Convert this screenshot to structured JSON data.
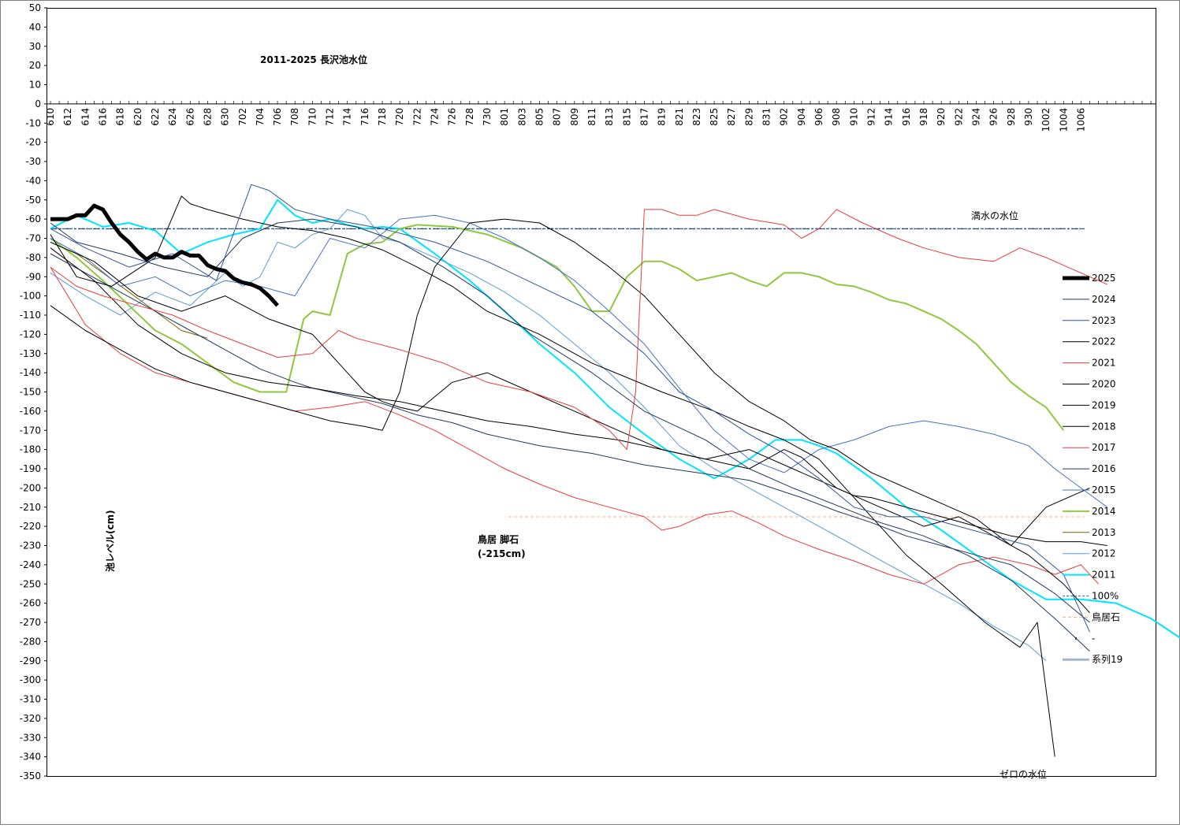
{
  "chart_data": {
    "type": "line",
    "title": "2011-2025 長沢池水位",
    "ylabel": "池レベル(cm)",
    "ylim": [
      -350,
      50
    ],
    "y_ticks": [
      50,
      40,
      30,
      20,
      10,
      0,
      -10,
      -20,
      -30,
      -40,
      -50,
      -60,
      -70,
      -80,
      -90,
      -100,
      -110,
      -120,
      -130,
      -140,
      -150,
      -160,
      -170,
      -180,
      -190,
      -200,
      -210,
      -220,
      -230,
      -240,
      -250,
      -260,
      -270,
      -280,
      -290,
      -300,
      -310,
      -320,
      -330,
      -340,
      -350
    ],
    "x_tick_labels": [
      "610",
      "612",
      "614",
      "616",
      "618",
      "620",
      "622",
      "624",
      "626",
      "628",
      "630",
      "702",
      "704",
      "706",
      "708",
      "710",
      "712",
      "714",
      "716",
      "718",
      "720",
      "722",
      "724",
      "726",
      "728",
      "730",
      "801",
      "803",
      "805",
      "807",
      "809",
      "811",
      "813",
      "815",
      "817",
      "819",
      "821",
      "823",
      "825",
      "827",
      "829",
      "831",
      "902",
      "904",
      "906",
      "908",
      "910",
      "912",
      "914",
      "916",
      "918",
      "920",
      "922",
      "924",
      "926",
      "928",
      "930",
      "1002",
      "1004",
      "1006"
    ],
    "annotations": {
      "full_level": "満水の水位",
      "torii": "鳥居 脚石",
      "torii_sub": "(-215cm)",
      "zero_level": "ゼロの水位"
    },
    "reference_lines": [
      {
        "name": "100%",
        "y": -65,
        "color": "#2e75b6"
      },
      {
        "name": "鳥居石",
        "y": -215,
        "color": "#f4b183"
      }
    ],
    "legend_placement": "right",
    "series": [
      {
        "name": "2025",
        "color": "#000000",
        "width": 5,
        "x": [
          0,
          1,
          2,
          3,
          4,
          5,
          6,
          7,
          8,
          9,
          10,
          11,
          12,
          13,
          14,
          15,
          16,
          17,
          18,
          19,
          20,
          21,
          22,
          23,
          24,
          25,
          26
        ],
        "y": [
          -60,
          -60,
          -60,
          -58,
          -58,
          -53,
          -55,
          -62,
          -68,
          -72,
          -77,
          -81,
          -78,
          -80,
          -80,
          -77,
          -79,
          -79,
          -84,
          -86,
          -87,
          -91,
          -93,
          -94,
          -96,
          -100,
          -105
        ]
      },
      {
        "name": "2024",
        "color": "#1f3864",
        "width": 1,
        "x": [
          0,
          3,
          8,
          13,
          18,
          22,
          26,
          30,
          35,
          40,
          45,
          50,
          55,
          62,
          68,
          75,
          80,
          85,
          95,
          100,
          105,
          110,
          115,
          119
        ],
        "y": [
          -62,
          -72,
          -78,
          -85,
          -90,
          -70,
          -62,
          -60,
          -64,
          -72,
          -85,
          -100,
          -120,
          -140,
          -160,
          -175,
          -190,
          -200,
          -218,
          -225,
          -235,
          -248,
          -268,
          -285
        ]
      },
      {
        "name": "2023",
        "color": "#2f5597",
        "width": 1,
        "x": [
          0,
          4,
          9,
          14,
          19,
          23,
          25,
          28,
          32,
          38,
          44,
          50,
          56,
          62,
          68,
          72,
          76,
          80,
          84,
          88,
          92,
          96,
          100,
          104,
          108,
          112,
          116,
          119
        ],
        "y": [
          -65,
          -75,
          -85,
          -78,
          -92,
          -42,
          -45,
          -55,
          -60,
          -65,
          -72,
          -82,
          -95,
          -108,
          -130,
          -150,
          -160,
          -172,
          -182,
          -195,
          -210,
          -215,
          -215,
          -220,
          -225,
          -230,
          -245,
          -275
        ]
      },
      {
        "name": "2022",
        "color": "#000000",
        "width": 1,
        "x": [
          0,
          3,
          7,
          12,
          15,
          16,
          18,
          22,
          26,
          30,
          34,
          38,
          42,
          46,
          50,
          56,
          62,
          70,
          76,
          80,
          84,
          88,
          90,
          92,
          94,
          96,
          98,
          102,
          107,
          111,
          113,
          115
        ],
        "y": [
          -68,
          -90,
          -95,
          -80,
          -48,
          -52,
          -55,
          -60,
          -64,
          -66,
          -70,
          -76,
          -85,
          -95,
          -108,
          -120,
          -135,
          -150,
          -160,
          -168,
          -175,
          -185,
          -195,
          -205,
          -215,
          -225,
          -235,
          -250,
          -270,
          -283,
          -270,
          -340
        ]
      },
      {
        "name": "2021",
        "color": "#e83c3c",
        "width": 1,
        "x": [
          0,
          3,
          6,
          10,
          14,
          18,
          22,
          26,
          30,
          33,
          35,
          40,
          45,
          50,
          55,
          60,
          64,
          66,
          67,
          68,
          70,
          72,
          74,
          76,
          80,
          84,
          86,
          88,
          90,
          93,
          97,
          100,
          104,
          108,
          111,
          114,
          118,
          121
        ],
        "y": [
          -85,
          -95,
          -100,
          -105,
          -110,
          -118,
          -125,
          -132,
          -130,
          -118,
          -122,
          -128,
          -135,
          -145,
          -150,
          -158,
          -170,
          -180,
          -150,
          -55,
          -55,
          -58,
          -58,
          -55,
          -60,
          -63,
          -70,
          -65,
          -55,
          -62,
          -70,
          -75,
          -80,
          -82,
          -75,
          -80,
          -88,
          -94
        ]
      },
      {
        "name": "2020",
        "color": "#000000",
        "width": 1,
        "x": [
          0,
          4,
          8,
          12,
          16,
          20,
          24,
          28,
          32,
          36,
          38,
          40,
          42,
          44,
          48,
          52,
          56,
          60,
          64,
          68,
          72,
          76,
          80,
          84,
          87,
          90,
          94,
          98,
          102,
          106,
          110,
          114,
          119
        ],
        "y": [
          -105,
          -118,
          -128,
          -138,
          -145,
          -150,
          -155,
          -160,
          -165,
          -168,
          -170,
          -150,
          -110,
          -85,
          -62,
          -60,
          -62,
          -72,
          -85,
          -100,
          -120,
          -140,
          -155,
          -165,
          -175,
          -180,
          -192,
          -200,
          -208,
          -216,
          -230,
          -210,
          -200
        ]
      },
      {
        "name": "2019",
        "color": "#000000",
        "width": 1,
        "x": [
          0,
          5,
          10,
          15,
          20,
          25,
          30,
          34,
          36,
          38,
          40,
          42,
          46,
          50,
          55,
          60,
          65,
          70,
          75,
          80,
          85,
          90,
          95,
          100,
          104,
          108,
          112,
          116,
          119
        ],
        "y": [
          -72,
          -82,
          -100,
          -108,
          -100,
          -112,
          -120,
          -140,
          -150,
          -155,
          -158,
          -160,
          -145,
          -140,
          -150,
          -160,
          -170,
          -180,
          -185,
          -180,
          -190,
          -200,
          -210,
          -220,
          -215,
          -225,
          -235,
          -250,
          -265
        ]
      },
      {
        "name": "2018",
        "color": "#000000",
        "width": 1,
        "x": [
          0,
          5,
          10,
          15,
          20,
          25,
          30,
          35,
          40,
          45,
          50,
          55,
          60,
          65,
          70,
          75,
          80,
          82,
          84,
          86,
          88,
          90,
          92,
          94,
          98,
          102,
          106,
          110,
          114,
          118,
          121
        ],
        "y": [
          -75,
          -92,
          -115,
          -130,
          -140,
          -145,
          -148,
          -152,
          -155,
          -160,
          -165,
          -168,
          -172,
          -175,
          -180,
          -185,
          -190,
          -185,
          -180,
          -184,
          -192,
          -200,
          -204,
          -205,
          -210,
          -215,
          -220,
          -225,
          -228,
          -228,
          -230
        ]
      },
      {
        "name": "2017",
        "color": "#e83c3c",
        "width": 1,
        "x": [
          0,
          4,
          8,
          12,
          16,
          20,
          24,
          28,
          32,
          36,
          40,
          44,
          48,
          52,
          56,
          60,
          64,
          68,
          70,
          72,
          75,
          78,
          81,
          84,
          88,
          92,
          96,
          100,
          104,
          108,
          112,
          115,
          118,
          120
        ],
        "y": [
          -85,
          -115,
          -130,
          -140,
          -145,
          -150,
          -155,
          -160,
          -158,
          -155,
          -162,
          -170,
          -180,
          -190,
          -198,
          -205,
          -210,
          -215,
          -222,
          -220,
          -214,
          -212,
          -218,
          -225,
          -232,
          -238,
          -245,
          -250,
          -240,
          -236,
          -240,
          -245,
          -240,
          -250
        ]
      },
      {
        "name": "2016",
        "color": "#1f3864",
        "width": 1,
        "x": [
          0,
          4,
          8,
          12,
          16,
          20,
          24,
          28,
          30,
          32,
          34,
          38,
          42,
          46,
          50,
          56,
          62,
          68,
          74,
          80,
          86,
          90,
          94,
          98,
          102,
          106,
          110,
          115,
          119
        ],
        "y": [
          -78,
          -88,
          -98,
          -108,
          -118,
          -128,
          -138,
          -145,
          -148,
          -150,
          -152,
          -156,
          -162,
          -166,
          -172,
          -178,
          -182,
          -188,
          -192,
          -196,
          -205,
          -212,
          -218,
          -225,
          -230,
          -235,
          -240,
          -255,
          -270
        ]
      },
      {
        "name": "2015",
        "color": "#4472c4",
        "width": 1,
        "x": [
          0,
          4,
          8,
          12,
          16,
          20,
          24,
          28,
          32,
          36,
          40,
          44,
          48,
          52,
          56,
          60,
          64,
          68,
          72,
          76,
          80,
          84,
          88,
          92,
          96,
          100,
          104,
          108,
          112,
          115,
          118,
          121
        ],
        "y": [
          -70,
          -80,
          -95,
          -90,
          -100,
          -92,
          -95,
          -100,
          -70,
          -75,
          -60,
          -58,
          -62,
          -70,
          -80,
          -92,
          -108,
          -125,
          -148,
          -170,
          -185,
          -192,
          -180,
          -175,
          -168,
          -165,
          -168,
          -172,
          -178,
          -190,
          -200,
          -210
        ]
      },
      {
        "name": "2014",
        "color": "#8fc73e",
        "width": 2,
        "x": [
          0,
          3,
          6,
          9,
          12,
          15,
          18,
          21,
          24,
          27,
          29,
          30,
          32,
          34,
          36,
          38,
          40,
          42,
          46,
          50,
          54,
          58,
          60,
          62,
          64,
          66,
          68,
          70,
          72,
          74,
          76,
          78,
          80,
          82,
          84,
          86,
          88,
          90,
          92,
          94,
          96,
          98,
          100,
          102,
          104,
          106,
          108,
          110,
          112,
          114,
          116
        ],
        "y": [
          -70,
          -80,
          -92,
          -105,
          -118,
          -125,
          -135,
          -145,
          -150,
          -150,
          -112,
          -108,
          -110,
          -78,
          -73,
          -72,
          -65,
          -63,
          -64,
          -68,
          -75,
          -85,
          -95,
          -108,
          -108,
          -90,
          -82,
          -82,
          -86,
          -92,
          -90,
          -88,
          -92,
          -95,
          -88,
          -88,
          -90,
          -94,
          -95,
          -98,
          -102,
          -104,
          -108,
          -112,
          -118,
          -125,
          -135,
          -145,
          -152,
          -158,
          -170
        ]
      },
      {
        "name": "2013",
        "color": "#7f6000",
        "width": 1,
        "x": [
          0,
          3,
          6,
          9,
          12,
          15,
          18
        ],
        "y": [
          -72,
          -78,
          -88,
          -98,
          -108,
          -118,
          -122
        ]
      },
      {
        "name": "2012",
        "color": "#5b9bd5",
        "width": 1,
        "x": [
          0,
          4,
          8,
          12,
          16,
          20,
          22,
          24,
          26,
          28,
          30,
          32,
          34,
          36,
          38,
          40,
          44,
          48,
          52,
          56,
          60,
          64,
          68,
          72,
          76,
          80,
          84,
          88,
          92,
          96,
          100,
          104,
          108,
          112,
          114
        ],
        "y": [
          -88,
          -100,
          -110,
          -98,
          -105,
          -88,
          -95,
          -90,
          -72,
          -75,
          -68,
          -65,
          -55,
          -58,
          -70,
          -72,
          -80,
          -88,
          -98,
          -110,
          -125,
          -140,
          -158,
          -178,
          -190,
          -200,
          -210,
          -220,
          -230,
          -240,
          -250,
          -260,
          -272,
          -282,
          -290
        ]
      },
      {
        "name": "2011",
        "color": "#00e5ff",
        "width": 2,
        "x": [
          0,
          3,
          6,
          9,
          12,
          15,
          18,
          21,
          24,
          26,
          28,
          30,
          32,
          34,
          36,
          38,
          40,
          44,
          48,
          52,
          56,
          60,
          64,
          68,
          72,
          76,
          80,
          83,
          86,
          88,
          90,
          94,
          98,
          102,
          106,
          110,
          114,
          118,
          122,
          126,
          130
        ],
        "y": [
          -65,
          -58,
          -64,
          -62,
          -66,
          -78,
          -72,
          -68,
          -65,
          -50,
          -58,
          -62,
          -60,
          -63,
          -65,
          -64,
          -65,
          -78,
          -92,
          -108,
          -125,
          -140,
          -158,
          -172,
          -185,
          -195,
          -185,
          -175,
          -175,
          -178,
          -182,
          -195,
          -210,
          -222,
          -235,
          -248,
          -258,
          -258,
          -260,
          -268,
          -280
        ]
      }
    ],
    "legend": [
      "2025",
      "2024",
      "2023",
      "2022",
      "2021",
      "2020",
      "2019",
      "2018",
      "2017",
      "2016",
      "2015",
      "2014",
      "2013",
      "2012",
      "2011",
      "100%",
      "鳥居石",
      "-",
      "系列19"
    ]
  }
}
